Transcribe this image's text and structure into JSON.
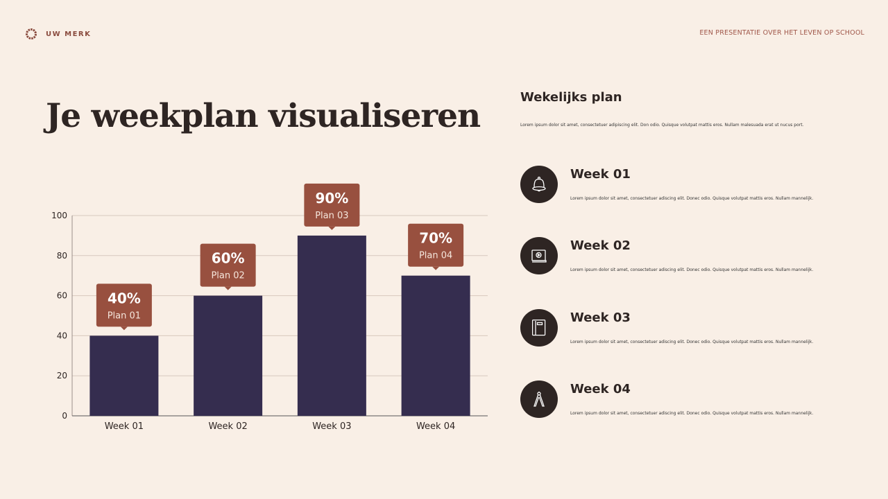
{
  "header": {
    "brand": "UW MERK",
    "subtitle": "EEN PRESENTATIE OVER HET LEVEN OP SCHOOL"
  },
  "title": "Je weekplan visualiseren",
  "side": {
    "title": "Wekelijks plan",
    "description": "Lorem ipsum dolor sit amet, consectetuer adipiscing elit. Don odio. Quisque volutpat mattis eros. Nullam malesuada erat ut nucus port.",
    "items": [
      {
        "title": "Week 01",
        "icon": "bell-icon",
        "text": "Lorem ipsum dolor sit amet, consectetuer adiscing elit. Donec odio. Quisque volutpat mattis eros. Nullam mannelijk."
      },
      {
        "title": "Week 02",
        "icon": "video-laptop-icon",
        "text": "Lorem ipsum dolor sit amet, consectetuer adiscing elit. Donec odio. Quisque volutpat mattis eros. Nullam mannelijk."
      },
      {
        "title": "Week 03",
        "icon": "book-icon",
        "text": "Lorem ipsum dolor sit amet, consectetuer adiscing elit. Donec odio. Quisque volutpat mattis eros. Nullam mannelijk."
      },
      {
        "title": "Week 04",
        "icon": "compass-icon",
        "text": "Lorem ipsum dolor sit amet, consectetuer adiscing elit. Donec odio. Quisque volutpat mattis eros. Nullam mannelijk."
      }
    ]
  },
  "colors": {
    "bar": "#352d4f",
    "callout": "#98503f",
    "background": "#f9efe6",
    "text": "#2e2523"
  },
  "chart_data": {
    "type": "bar",
    "categories": [
      "Week 01",
      "Week 02",
      "Week 03",
      "Week 04"
    ],
    "values": [
      40,
      60,
      90,
      70
    ],
    "data_labels": [
      "40%",
      "60%",
      "90%",
      "70%"
    ],
    "plan_labels": [
      "Plan 01",
      "Plan 02",
      "Plan 03",
      "Plan 04"
    ],
    "yticks": [
      0,
      20,
      40,
      60,
      80,
      100
    ],
    "ylim": [
      0,
      100
    ],
    "grid": true
  }
}
